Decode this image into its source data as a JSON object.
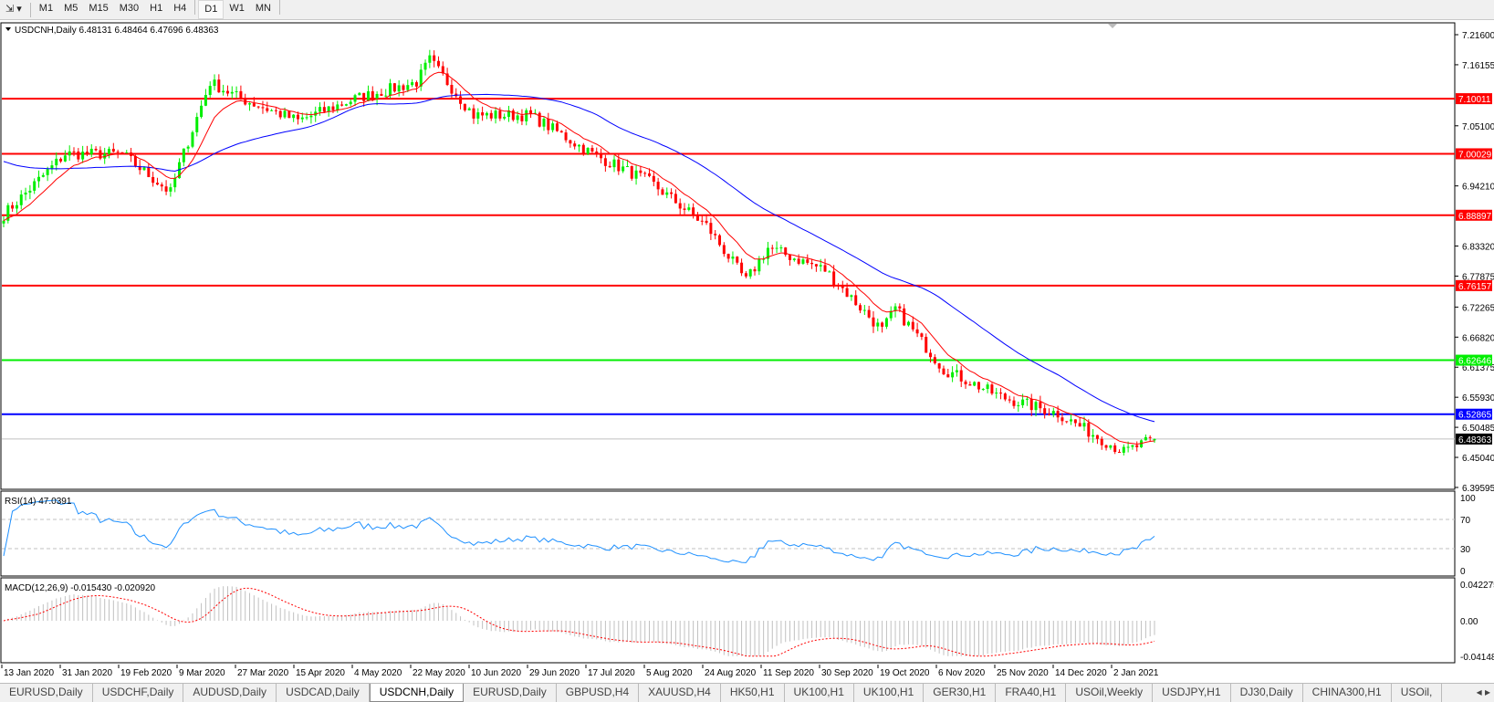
{
  "toolbar": {
    "timeframes": [
      "M1",
      "M5",
      "M15",
      "M30",
      "H1",
      "H4",
      "D1",
      "W1",
      "MN"
    ],
    "selected": "D1"
  },
  "chart": {
    "header": "USDCNH,Daily  6.48131 6.48464 6.47696 6.48363",
    "rsi_label": "RSI(14) 47.0391",
    "macd_label": "MACD(12,26,9) -0.015430 -0.020920",
    "price_ticks": [
      "7.21600",
      "7.16155",
      "7.05100",
      "6.94210",
      "6.83320",
      "6.77875",
      "6.72265",
      "6.66820",
      "6.61375",
      "6.55930",
      "6.50485",
      "6.45040",
      "6.39595"
    ],
    "rsi_ticks": [
      "100",
      "70",
      "30",
      "0"
    ],
    "macd_ticks": [
      "0.042275",
      "0.00",
      "-0.04148"
    ],
    "date_labels": [
      "13 Jan 2020",
      "31 Jan 2020",
      "19 Feb 2020",
      "9 Mar 2020",
      "27 Mar 2020",
      "15 Apr 2020",
      "4 May 2020",
      "22 May 2020",
      "10 Jun 2020",
      "29 Jun 2020",
      "17 Jul 2020",
      "5 Aug 2020",
      "24 Aug 2020",
      "11 Sep 2020",
      "30 Sep 2020",
      "19 Oct 2020",
      "6 Nov 2020",
      "25 Nov 2020",
      "14 Dec 2020",
      "2 Jan 2021"
    ],
    "levels": [
      {
        "price": "7.10011",
        "color": "#ff0000"
      },
      {
        "price": "7.00029",
        "color": "#ff0000"
      },
      {
        "price": "6.88897",
        "color": "#ff0000"
      },
      {
        "price": "6.76157",
        "color": "#ff0000"
      },
      {
        "price": "6.62646",
        "color": "#00ee00"
      },
      {
        "price": "6.52865",
        "color": "#0000ff"
      }
    ],
    "current_price": "6.48363",
    "colors": {
      "bull": "#00ee00",
      "bear": "#ff0000",
      "fast_ma": "#ff0000",
      "slow_ma": "#0000ff",
      "rsi": "#1e90ff",
      "macd_signal": "#ff0000",
      "macd_hist": "#c0c0c0"
    }
  },
  "chart_data": {
    "type": "candlestick",
    "symbol": "USDCNH",
    "timeframe": "Daily",
    "last_bar": {
      "open": 6.48131,
      "high": 6.48464,
      "low": 6.47696,
      "close": 6.48363
    },
    "approx_close_path": [
      [
        "2020-01-13",
        6.89
      ],
      [
        "2020-01-31",
        7.0
      ],
      [
        "2020-02-19",
        7.0
      ],
      [
        "2020-03-05",
        6.93
      ],
      [
        "2020-03-09",
        6.98
      ],
      [
        "2020-03-18",
        7.13
      ],
      [
        "2020-03-27",
        7.1
      ],
      [
        "2020-04-15",
        7.06
      ],
      [
        "2020-05-04",
        7.1
      ],
      [
        "2020-05-22",
        7.13
      ],
      [
        "2020-05-27",
        7.17
      ],
      [
        "2020-06-10",
        7.07
      ],
      [
        "2020-06-29",
        7.07
      ],
      [
        "2020-07-17",
        7.0
      ],
      [
        "2020-08-05",
        6.95
      ],
      [
        "2020-08-24",
        6.87
      ],
      [
        "2020-09-04",
        6.77
      ],
      [
        "2020-09-11",
        6.83
      ],
      [
        "2020-09-30",
        6.79
      ],
      [
        "2020-10-19",
        6.68
      ],
      [
        "2020-10-22",
        6.72
      ],
      [
        "2020-11-06",
        6.61
      ],
      [
        "2020-11-25",
        6.56
      ],
      [
        "2020-12-14",
        6.53
      ],
      [
        "2021-01-04",
        6.46
      ],
      [
        "2021-01-13",
        6.48363
      ]
    ],
    "y_range": [
      6.39595,
      7.216
    ],
    "indicators": {
      "rsi": {
        "period": 14,
        "value": 47.0391,
        "levels": [
          70,
          30
        ]
      },
      "macd": {
        "fast": 12,
        "slow": 26,
        "signal": 9,
        "main": -0.01543,
        "signal_value": -0.02092
      }
    }
  },
  "tabs": {
    "items": [
      "EURUSD,Daily",
      "USDCHF,Daily",
      "AUDUSD,Daily",
      "USDCAD,Daily",
      "USDCNH,Daily",
      "EURUSD,Daily",
      "GBPUSD,H4",
      "XAUUSD,H4",
      "HK50,H1",
      "UK100,H1",
      "UK100,H1",
      "GER30,H1",
      "FRA40,H1",
      "USOil,Weekly",
      "USDJPY,H1",
      "DJ30,Daily",
      "CHINA300,H1",
      "USOil,"
    ],
    "active": 4
  }
}
